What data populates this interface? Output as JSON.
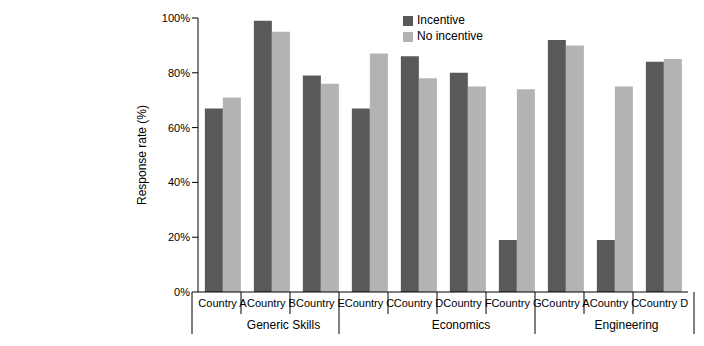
{
  "chart_data": {
    "type": "bar",
    "y_label": "Response rate (%)",
    "categories": [
      "Country A",
      "Country B",
      "Country E",
      "Country C",
      "Country D",
      "Country F",
      "Country G",
      "Country A",
      "Country C",
      "Country D"
    ],
    "category_groups": [
      "Generic Skills",
      "Generic Skills",
      "Generic Skills",
      "Economics",
      "Economics",
      "Economics",
      "Economics",
      "Engineering",
      "Engineering",
      "Engineering"
    ],
    "series": [
      {
        "name": "Incentive",
        "color": "#595959",
        "values": [
          67,
          99,
          79,
          67,
          86,
          80,
          19,
          92,
          19,
          84
        ]
      },
      {
        "name": "No incentive",
        "color": "#b3b3b3",
        "values": [
          71,
          95,
          76,
          87,
          78,
          75,
          74,
          90,
          75,
          85
        ]
      }
    ],
    "ylim": [
      0,
      100
    ],
    "yticks": [
      {
        "value": 0,
        "label": "0%"
      },
      {
        "value": 20,
        "label": "20%"
      },
      {
        "value": 40,
        "label": "40%"
      },
      {
        "value": 60,
        "label": "60%"
      },
      {
        "value": 80,
        "label": "80%"
      },
      {
        "value": 100,
        "label": "100%"
      }
    ],
    "grid": false,
    "legend": "top"
  }
}
